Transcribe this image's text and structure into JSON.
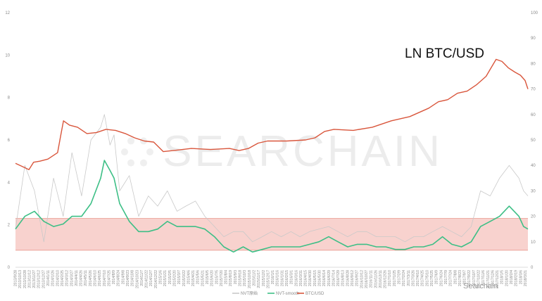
{
  "chart_data": {
    "type": "line",
    "annotation": "LN BTC/USD",
    "watermark": "SEARCHAIN",
    "watermark_small": "Searchain",
    "left_axis": {
      "ylim": [
        0,
        12
      ],
      "ticks": [
        "0",
        "2",
        "4",
        "6",
        "8",
        "10",
        "12"
      ]
    },
    "right_axis": {
      "ylim": [
        0,
        100
      ],
      "ticks": [
        "0",
        "10",
        "20",
        "30",
        "40",
        "50",
        "60",
        "70",
        "80",
        "90",
        "100"
      ]
    },
    "x_start": "2013/9/28",
    "x_end": "2018/3/29",
    "x_tick_step_days": 15,
    "bands": [
      {
        "name": "upper_band",
        "value": 2.3,
        "axis": "left"
      },
      {
        "name": "lower_band",
        "value": 0.8,
        "axis": "left"
      }
    ],
    "legend": [
      {
        "label": "NVT原始",
        "color": "#c9c9c9"
      },
      {
        "label": "NVT-smooth",
        "color": "#3dbf86"
      },
      {
        "label": "BTC/USD",
        "color": "#d9563c"
      }
    ],
    "series": [
      {
        "name": "BTC/USD",
        "axis": "left",
        "color": "#d9563c",
        "points": [
          [
            "2013/9/28",
            4.9
          ],
          [
            "2013/10/20",
            4.75
          ],
          [
            "2013/11/10",
            4.6
          ],
          [
            "2013/11/25",
            4.95
          ],
          [
            "2013/12/15",
            5.0
          ],
          [
            "2014/1/10",
            5.1
          ],
          [
            "2014/2/10",
            5.4
          ],
          [
            "2014/2/20",
            6.2
          ],
          [
            "2014/3/1",
            6.9
          ],
          [
            "2014/3/20",
            6.7
          ],
          [
            "2014/4/15",
            6.6
          ],
          [
            "2014/5/15",
            6.3
          ],
          [
            "2014/6/15",
            6.35
          ],
          [
            "2014/7/15",
            6.5
          ],
          [
            "2014/8/15",
            6.45
          ],
          [
            "2014/9/15",
            6.3
          ],
          [
            "2014/10/15",
            6.1
          ],
          [
            "2014/11/15",
            5.95
          ],
          [
            "2014/12/15",
            5.9
          ],
          [
            "2015/1/15",
            5.45
          ],
          [
            "2015/2/15",
            5.5
          ],
          [
            "2015/4/15",
            5.6
          ],
          [
            "2015/6/15",
            5.55
          ],
          [
            "2015/8/15",
            5.6
          ],
          [
            "2015/9/15",
            5.5
          ],
          [
            "2015/10/15",
            5.6
          ],
          [
            "2015/11/15",
            5.85
          ],
          [
            "2015/12/15",
            5.95
          ],
          [
            "2016/2/15",
            5.95
          ],
          [
            "2016/4/15",
            6.0
          ],
          [
            "2016/5/15",
            6.1
          ],
          [
            "2016/6/15",
            6.4
          ],
          [
            "2016/7/15",
            6.5
          ],
          [
            "2016/9/15",
            6.45
          ],
          [
            "2016/11/15",
            6.6
          ],
          [
            "2017/1/15",
            6.9
          ],
          [
            "2017/3/15",
            7.1
          ],
          [
            "2017/5/15",
            7.5
          ],
          [
            "2017/6/15",
            7.8
          ],
          [
            "2017/7/15",
            7.9
          ],
          [
            "2017/8/15",
            8.2
          ],
          [
            "2017/9/15",
            8.3
          ],
          [
            "2017/10/15",
            8.6
          ],
          [
            "2017/11/15",
            9.0
          ],
          [
            "2017/12/1",
            9.4
          ],
          [
            "2017/12/17",
            9.8
          ],
          [
            "2018/1/5",
            9.7
          ],
          [
            "2018/1/25",
            9.4
          ],
          [
            "2018/2/15",
            9.2
          ],
          [
            "2018/3/5",
            9.05
          ],
          [
            "2018/3/20",
            8.8
          ],
          [
            "2018/3/29",
            8.4
          ]
        ]
      },
      {
        "name": "NVT-smooth",
        "axis": "right",
        "color": "#3dbf86",
        "points": [
          [
            "2013/9/28",
            15
          ],
          [
            "2013/10/28",
            20
          ],
          [
            "2013/11/28",
            22
          ],
          [
            "2013/12/28",
            18
          ],
          [
            "2014/1/28",
            16
          ],
          [
            "2014/2/28",
            17
          ],
          [
            "2014/3/28",
            20
          ],
          [
            "2014/4/28",
            20
          ],
          [
            "2014/5/28",
            25
          ],
          [
            "2014/6/28",
            35
          ],
          [
            "2014/7/10",
            42
          ],
          [
            "2014/7/28",
            38
          ],
          [
            "2014/8/10",
            35
          ],
          [
            "2014/8/28",
            25
          ],
          [
            "2014/9/28",
            18
          ],
          [
            "2014/10/28",
            14
          ],
          [
            "2014/11/28",
            14
          ],
          [
            "2014/12/28",
            15
          ],
          [
            "2015/1/28",
            18
          ],
          [
            "2015/2/28",
            16
          ],
          [
            "2015/3/28",
            16
          ],
          [
            "2015/4/28",
            16
          ],
          [
            "2015/5/28",
            15
          ],
          [
            "2015/6/28",
            12
          ],
          [
            "2015/7/28",
            8
          ],
          [
            "2015/8/28",
            6
          ],
          [
            "2015/9/28",
            8
          ],
          [
            "2015/10/28",
            6
          ],
          [
            "2015/11/28",
            7
          ],
          [
            "2015/12/28",
            8
          ],
          [
            "2016/1/28",
            8
          ],
          [
            "2016/2/28",
            8
          ],
          [
            "2016/3/28",
            8
          ],
          [
            "2016/4/28",
            9
          ],
          [
            "2016/5/28",
            10
          ],
          [
            "2016/6/28",
            12
          ],
          [
            "2016/7/28",
            10
          ],
          [
            "2016/8/28",
            8
          ],
          [
            "2016/9/28",
            9
          ],
          [
            "2016/10/28",
            9
          ],
          [
            "2016/11/28",
            8
          ],
          [
            "2016/12/28",
            8
          ],
          [
            "2017/1/28",
            7
          ],
          [
            "2017/2/28",
            7
          ],
          [
            "2017/3/28",
            8
          ],
          [
            "2017/4/28",
            8
          ],
          [
            "2017/5/28",
            9
          ],
          [
            "2017/6/28",
            12
          ],
          [
            "2017/7/28",
            9
          ],
          [
            "2017/8/28",
            8
          ],
          [
            "2017/9/28",
            10
          ],
          [
            "2017/10/28",
            16
          ],
          [
            "2017/11/28",
            18
          ],
          [
            "2017/12/28",
            20
          ],
          [
            "2018/1/28",
            24
          ],
          [
            "2018/2/28",
            20
          ],
          [
            "2018/3/15",
            16
          ],
          [
            "2018/3/29",
            15
          ]
        ]
      },
      {
        "name": "NVT原始",
        "axis": "right",
        "color": "#c9c9c9",
        "points": [
          [
            "2013/9/28",
            15
          ],
          [
            "2013/10/28",
            40
          ],
          [
            "2013/11/28",
            30
          ],
          [
            "2013/12/28",
            10
          ],
          [
            "2014/1/28",
            35
          ],
          [
            "2014/2/28",
            20
          ],
          [
            "2014/3/28",
            45
          ],
          [
            "2014/4/28",
            28
          ],
          [
            "2014/5/28",
            50
          ],
          [
            "2014/6/28",
            55
          ],
          [
            "2014/7/10",
            60
          ],
          [
            "2014/7/28",
            48
          ],
          [
            "2014/8/10",
            52
          ],
          [
            "2014/8/28",
            30
          ],
          [
            "2014/9/28",
            36
          ],
          [
            "2014/10/28",
            20
          ],
          [
            "2014/11/28",
            28
          ],
          [
            "2014/12/28",
            24
          ],
          [
            "2015/1/28",
            30
          ],
          [
            "2015/2/28",
            22
          ],
          [
            "2015/3/28",
            24
          ],
          [
            "2015/4/28",
            26
          ],
          [
            "2015/5/28",
            20
          ],
          [
            "2015/6/28",
            16
          ],
          [
            "2015/7/28",
            12
          ],
          [
            "2015/8/28",
            14
          ],
          [
            "2015/9/28",
            14
          ],
          [
            "2015/10/28",
            10
          ],
          [
            "2015/11/28",
            12
          ],
          [
            "2015/12/28",
            14
          ],
          [
            "2016/1/28",
            12
          ],
          [
            "2016/2/28",
            14
          ],
          [
            "2016/3/28",
            12
          ],
          [
            "2016/4/28",
            14
          ],
          [
            "2016/5/28",
            15
          ],
          [
            "2016/6/28",
            16
          ],
          [
            "2016/7/28",
            14
          ],
          [
            "2016/8/28",
            12
          ],
          [
            "2016/9/28",
            14
          ],
          [
            "2016/10/28",
            14
          ],
          [
            "2016/11/28",
            12
          ],
          [
            "2016/12/28",
            12
          ],
          [
            "2017/1/28",
            12
          ],
          [
            "2017/2/28",
            10
          ],
          [
            "2017/3/28",
            12
          ],
          [
            "2017/4/28",
            12
          ],
          [
            "2017/5/28",
            14
          ],
          [
            "2017/6/28",
            16
          ],
          [
            "2017/7/28",
            14
          ],
          [
            "2017/8/28",
            12
          ],
          [
            "2017/9/28",
            16
          ],
          [
            "2017/10/28",
            30
          ],
          [
            "2017/11/28",
            28
          ],
          [
            "2017/12/28",
            35
          ],
          [
            "2018/1/28",
            40
          ],
          [
            "2018/2/28",
            35
          ],
          [
            "2018/3/15",
            30
          ],
          [
            "2018/3/29",
            28
          ]
        ]
      }
    ]
  }
}
